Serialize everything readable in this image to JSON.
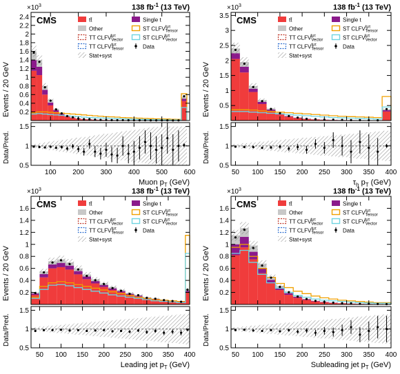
{
  "figure": {
    "lumi_text": "138 fb",
    "lumi_exp": "-1",
    "energy_text": "(13 TeV)",
    "experiment": "CMS",
    "multiplier_base": "×10",
    "multiplier_exp": "3",
    "ylabel_main": "Events / 20 GeV",
    "ylabel_ratio": "Data/Pred.",
    "legend": [
      {
        "key": "ttbar",
        "label": "tt̄",
        "color": "#f03c3c",
        "style": "fill"
      },
      {
        "key": "single_top",
        "label": "Single t",
        "color": "#8b1a8b",
        "style": "fill"
      },
      {
        "key": "other",
        "label": "Other",
        "color": "#c8c8c8",
        "style": "fill"
      },
      {
        "key": "st_tensor",
        "label": "ST CLFV",
        "sup": "tμτ",
        "sub": "Tensor",
        "color": "#f0a000",
        "style": "box"
      },
      {
        "key": "tt_vector",
        "label": "TT CLFV",
        "sup": "tμτ",
        "sub": "Vector",
        "color": "#c0392b",
        "style": "dashed"
      },
      {
        "key": "st_vector",
        "label": "ST CLFV",
        "sup": "tμτ",
        "sub": "Vector",
        "color": "#6fd4e0",
        "style": "box"
      },
      {
        "key": "tt_tensor",
        "label": "TT CLFV",
        "sup": "tμτ",
        "sub": "Tensor",
        "color": "#2f6fd0",
        "style": "dashed"
      },
      {
        "key": "data",
        "label": "Data",
        "color": "#000000",
        "style": "marker"
      },
      {
        "key": "unc",
        "label": "Stat+syst",
        "color": "#9a9a9a",
        "style": "hatch"
      }
    ]
  },
  "chart_data": [
    {
      "type": "bar",
      "xlabel": "Muon p",
      "xlabel_sub": "T",
      "xlabel_unit": " (GeV)",
      "xlim": [
        30,
        600
      ],
      "bin_width": 20,
      "ylim": [
        0,
        2.5
      ],
      "yticks": [
        0.2,
        0.4,
        0.6,
        0.8,
        1.0,
        1.2,
        1.4,
        1.6,
        1.8,
        2.0,
        2.2,
        2.4
      ],
      "xticks": [
        100,
        200,
        300,
        400,
        500,
        600
      ],
      "ratio_ylim": [
        0.5,
        1.6
      ],
      "ratio_yticks": [
        0.5,
        1.0,
        1.5
      ],
      "ttbar_values": [
        1.15,
        1.05,
        0.6,
        0.35,
        0.2,
        0.13,
        0.09,
        0.06,
        0.04,
        0.03,
        0.025,
        0.02,
        0.015,
        0.012,
        0.01,
        0.008,
        0.007,
        0.006,
        0.005,
        0.004,
        0.004,
        0.003,
        0.003,
        0.003,
        0.002,
        0.002,
        0.002,
        0.45
      ],
      "total_values": [
        1.6,
        1.4,
        0.8,
        0.47,
        0.27,
        0.17,
        0.11,
        0.075,
        0.05,
        0.037,
        0.03,
        0.024,
        0.018,
        0.014,
        0.012,
        0.01,
        0.009,
        0.008,
        0.007,
        0.006,
        0.005,
        0.004,
        0.004,
        0.004,
        0.003,
        0.003,
        0.003,
        0.55
      ],
      "st_tensor_values": [
        0.18,
        0.2,
        0.2,
        0.19,
        0.18,
        0.17,
        0.16,
        0.15,
        0.14,
        0.13,
        0.12,
        0.11,
        0.1,
        0.09,
        0.085,
        0.08,
        0.07,
        0.065,
        0.06,
        0.055,
        0.05,
        0.045,
        0.04,
        0.038,
        0.035,
        0.03,
        0.028,
        0.62
      ],
      "st_vector_values": [
        0.15,
        0.16,
        0.15,
        0.14,
        0.13,
        0.12,
        0.11,
        0.1,
        0.09,
        0.08,
        0.07,
        0.065,
        0.06,
        0.055,
        0.05,
        0.045,
        0.04,
        0.035,
        0.03,
        0.028,
        0.025,
        0.022,
        0.02,
        0.018,
        0.016,
        0.014,
        0.013,
        0.3
      ],
      "ratio_values": [
        0.98,
        0.97,
        0.96,
        0.98,
        0.95,
        0.97,
        0.93,
        0.99,
        0.92,
        0.85,
        1.05,
        0.85,
        0.8,
        0.9,
        0.78,
        0.75,
        1.0,
        0.8,
        0.85,
        0.95,
        1.1,
        1.0,
        0.9,
        0.95,
        1.2,
        0.9,
        1.0,
        1.02
      ],
      "ratio_errors": [
        0.02,
        0.02,
        0.02,
        0.03,
        0.03,
        0.04,
        0.05,
        0.06,
        0.08,
        0.1,
        0.12,
        0.14,
        0.15,
        0.18,
        0.2,
        0.2,
        0.25,
        0.25,
        0.28,
        0.3,
        0.3,
        0.35,
        0.35,
        0.35,
        0.4,
        0.4,
        0.4,
        0.05
      ]
    },
    {
      "type": "bar",
      "xlabel": "τ",
      "xlabel_sub": "h",
      "xlabel_mid": " p",
      "xlabel_sub2": "T",
      "xlabel_unit": " (GeV)",
      "xlim": [
        40,
        400
      ],
      "bin_width": 20,
      "ylim": [
        0,
        3.6
      ],
      "yticks": [
        0.5,
        1.0,
        1.5,
        2.0,
        2.5,
        3.0,
        3.5
      ],
      "xticks": [
        50,
        100,
        150,
        200,
        250,
        300,
        350,
        400
      ],
      "ratio_ylim": [
        0.5,
        1.6
      ],
      "ratio_yticks": [
        0.5,
        1.0,
        1.5
      ],
      "ttbar_values": [
        2.05,
        1.6,
        0.95,
        0.55,
        0.32,
        0.2,
        0.13,
        0.08,
        0.05,
        0.035,
        0.025,
        0.02,
        0.015,
        0.012,
        0.01,
        0.008,
        0.006,
        0.3
      ],
      "total_values": [
        2.4,
        1.95,
        1.15,
        0.68,
        0.4,
        0.25,
        0.16,
        0.1,
        0.065,
        0.045,
        0.032,
        0.025,
        0.02,
        0.016,
        0.013,
        0.01,
        0.008,
        0.38
      ],
      "st_tensor_values": [
        0.36,
        0.36,
        0.35,
        0.32,
        0.3,
        0.28,
        0.26,
        0.24,
        0.22,
        0.2,
        0.18,
        0.16,
        0.14,
        0.13,
        0.12,
        0.11,
        0.1,
        0.8
      ],
      "st_vector_values": [
        0.3,
        0.3,
        0.28,
        0.26,
        0.24,
        0.22,
        0.2,
        0.18,
        0.16,
        0.14,
        0.12,
        0.1,
        0.09,
        0.08,
        0.07,
        0.06,
        0.05,
        0.45
      ],
      "ratio_values": [
        0.98,
        0.97,
        0.97,
        0.95,
        0.96,
        0.98,
        0.93,
        0.97,
        0.9,
        1.05,
        0.95,
        1.15,
        1.0,
        0.85,
        1.1,
        0.95,
        0.85,
        1.0
      ],
      "ratio_errors": [
        0.02,
        0.02,
        0.03,
        0.03,
        0.04,
        0.05,
        0.06,
        0.08,
        0.1,
        0.12,
        0.15,
        0.2,
        0.25,
        0.3,
        0.3,
        0.35,
        0.35,
        0.05
      ]
    },
    {
      "type": "bar",
      "xlabel": "Leading jet p",
      "xlabel_sub": "T",
      "xlabel_unit": " (GeV)",
      "xlim": [
        30,
        400
      ],
      "bin_width": 20,
      "ylim": [
        0,
        1.8
      ],
      "yticks": [
        0.2,
        0.4,
        0.6,
        0.8,
        1.0,
        1.2,
        1.4,
        1.6
      ],
      "xticks": [
        50,
        100,
        150,
        200,
        250,
        300,
        350,
        400
      ],
      "ratio_ylim": [
        0.5,
        1.6
      ],
      "ratio_yticks": [
        0.5,
        1.0,
        1.5
      ],
      "ttbar_values": [
        0.16,
        0.45,
        0.6,
        0.62,
        0.58,
        0.5,
        0.42,
        0.35,
        0.29,
        0.24,
        0.2,
        0.16,
        0.13,
        0.1,
        0.08,
        0.06,
        0.05,
        0.04,
        0.2
      ],
      "total_values": [
        0.2,
        0.55,
        0.72,
        0.75,
        0.7,
        0.6,
        0.5,
        0.42,
        0.35,
        0.29,
        0.24,
        0.19,
        0.16,
        0.12,
        0.1,
        0.08,
        0.06,
        0.05,
        0.25
      ],
      "st_tensor_values": [
        0.12,
        0.3,
        0.36,
        0.38,
        0.36,
        0.33,
        0.3,
        0.27,
        0.24,
        0.21,
        0.18,
        0.15,
        0.12,
        0.1,
        0.08,
        0.07,
        0.06,
        0.05,
        1.15
      ],
      "st_vector_values": [
        0.1,
        0.25,
        0.32,
        0.33,
        0.31,
        0.28,
        0.25,
        0.22,
        0.19,
        0.16,
        0.14,
        0.12,
        0.1,
        0.08,
        0.06,
        0.05,
        0.04,
        0.03,
        0.85
      ],
      "ratio_values": [
        0.95,
        0.97,
        0.97,
        0.98,
        0.96,
        0.97,
        0.95,
        0.96,
        0.97,
        0.94,
        0.95,
        0.93,
        0.96,
        0.92,
        0.95,
        0.9,
        0.93,
        0.9,
        0.98
      ],
      "ratio_errors": [
        0.03,
        0.02,
        0.02,
        0.02,
        0.02,
        0.02,
        0.02,
        0.02,
        0.03,
        0.03,
        0.03,
        0.04,
        0.04,
        0.05,
        0.05,
        0.06,
        0.06,
        0.07,
        0.03
      ]
    },
    {
      "type": "bar",
      "xlabel": "Subleading jet p",
      "xlabel_sub": "T",
      "xlabel_unit": " (GeV)",
      "xlim": [
        40,
        400
      ],
      "bin_width": 20,
      "ylim": [
        0,
        1.8
      ],
      "yticks": [
        0.2,
        0.4,
        0.6,
        0.8,
        1.0,
        1.2,
        1.4,
        1.6
      ],
      "xticks": [
        50,
        100,
        150,
        200,
        250,
        300,
        350,
        400
      ],
      "ratio_ylim": [
        0.5,
        1.6
      ],
      "ratio_yticks": [
        0.5,
        1.0,
        1.5
      ],
      "ttbar_values": [
        0.82,
        0.95,
        0.75,
        0.52,
        0.35,
        0.24,
        0.16,
        0.11,
        0.075,
        0.05,
        0.035,
        0.025,
        0.018,
        0.013,
        0.01,
        0.007,
        0.005,
        0.004
      ],
      "total_values": [
        1.15,
        1.27,
        0.98,
        0.68,
        0.46,
        0.31,
        0.21,
        0.14,
        0.095,
        0.065,
        0.045,
        0.032,
        0.023,
        0.017,
        0.012,
        0.009,
        0.007,
        0.005
      ],
      "st_tensor_values": [
        0.95,
        1.0,
        0.8,
        0.6,
        0.45,
        0.35,
        0.28,
        0.22,
        0.18,
        0.14,
        0.11,
        0.09,
        0.07,
        0.06,
        0.05,
        0.04,
        0.03,
        0.03
      ],
      "st_vector_values": [
        0.85,
        0.9,
        0.7,
        0.5,
        0.36,
        0.27,
        0.2,
        0.15,
        0.12,
        0.09,
        0.07,
        0.06,
        0.05,
        0.04,
        0.03,
        0.025,
        0.02,
        0.02
      ],
      "ratio_values": [
        0.97,
        0.98,
        0.96,
        0.95,
        0.97,
        0.94,
        0.97,
        0.93,
        0.96,
        0.9,
        0.95,
        0.92,
        0.97,
        1.05,
        0.85,
        0.95,
        1.05,
        1.0
      ],
      "ratio_errors": [
        0.02,
        0.02,
        0.02,
        0.02,
        0.03,
        0.03,
        0.04,
        0.05,
        0.06,
        0.08,
        0.1,
        0.12,
        0.15,
        0.18,
        0.2,
        0.25,
        0.3,
        0.35
      ]
    }
  ]
}
